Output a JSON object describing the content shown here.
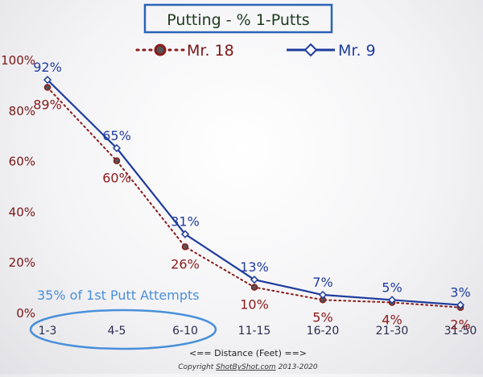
{
  "chart_data": {
    "type": "line",
    "title": "Putting - % 1-Putts",
    "xlabel": "<== Distance (Feet) ==>",
    "ylabel": "",
    "categories": [
      "1-3",
      "4-5",
      "6-10",
      "11-15",
      "16-20",
      "21-30",
      "31-50"
    ],
    "ylim": [
      0,
      100
    ],
    "yticks": [
      0,
      20,
      40,
      60,
      80,
      100
    ],
    "ytick_labels": [
      "0%",
      "20%",
      "40%",
      "60%",
      "80%",
      "100%"
    ],
    "grid": false,
    "legend_position": "top",
    "series": [
      {
        "name": "Mr. 18",
        "values": [
          89,
          60,
          26,
          10,
          5,
          4,
          2
        ],
        "labels": [
          "89%",
          "60%",
          "26%",
          "10%",
          "5%",
          "4%",
          "2%"
        ],
        "color": "#8b1a1a",
        "style": "dotted"
      },
      {
        "name": "Mr. 9",
        "values": [
          92,
          65,
          31,
          13,
          7,
          5,
          3
        ],
        "labels": [
          "92%",
          "65%",
          "31%",
          "13%",
          "7%",
          "5%",
          "3%"
        ],
        "color": "#1f3c9c",
        "style": "solid"
      }
    ],
    "annotation": "35% of  1st Putt Attempts",
    "copyright_prefix": "Copyright ",
    "copyright_site": "ShotByShot.com",
    "copyright_suffix": " 2013-2020"
  },
  "colors": {
    "title_border": "#2b63b6",
    "title_text": "#1e3a1e",
    "axis_label": "#7a1616",
    "xtick_label": "#2b2b4e",
    "annotation": "#4a90d9"
  }
}
